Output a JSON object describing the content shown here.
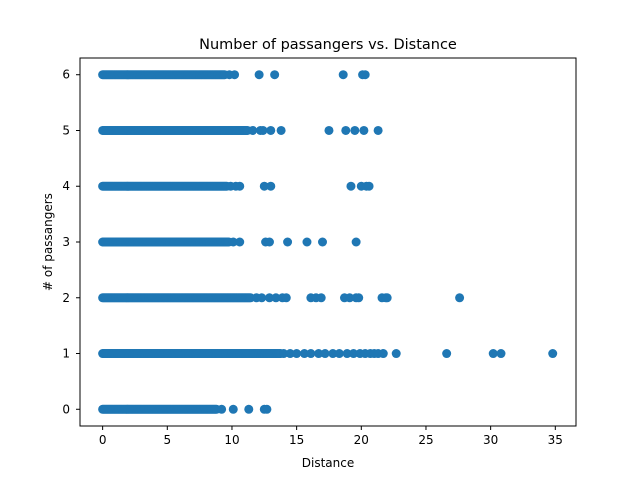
{
  "chart_data": {
    "type": "scatter",
    "title": "Number of passangers vs. Distance",
    "xlabel": "Distance",
    "ylabel": "# of passangers",
    "xlim": [
      -1.75,
      36.6
    ],
    "ylim": [
      -0.3,
      6.3
    ],
    "xticks": [
      0,
      5,
      10,
      15,
      20,
      25,
      30,
      35
    ],
    "yticks": [
      0,
      1,
      2,
      3,
      4,
      5,
      6
    ],
    "grid": false,
    "marker_color": "#1f77b4",
    "series": [
      {
        "dense_ranges": [
          {
            "y": 0,
            "from": 0,
            "to": 8.8
          },
          {
            "y": 1,
            "from": 0,
            "to": 13.8
          },
          {
            "y": 2,
            "from": 0,
            "to": 11.5
          },
          {
            "y": 3,
            "from": 0,
            "to": 9.8
          },
          {
            "y": 4,
            "from": 0,
            "to": 9.6
          },
          {
            "y": 5,
            "from": 0,
            "to": 11.2
          },
          {
            "y": 6,
            "from": 0,
            "to": 9.5
          }
        ],
        "points": [
          {
            "x": 9.2,
            "y": 0
          },
          {
            "x": 10.1,
            "y": 0
          },
          {
            "x": 11.3,
            "y": 0
          },
          {
            "x": 12.5,
            "y": 0
          },
          {
            "x": 12.7,
            "y": 0
          },
          {
            "x": 14.0,
            "y": 1
          },
          {
            "x": 14.5,
            "y": 1
          },
          {
            "x": 15.0,
            "y": 1
          },
          {
            "x": 15.6,
            "y": 1
          },
          {
            "x": 16.1,
            "y": 1
          },
          {
            "x": 16.7,
            "y": 1
          },
          {
            "x": 17.2,
            "y": 1
          },
          {
            "x": 17.8,
            "y": 1
          },
          {
            "x": 18.3,
            "y": 1
          },
          {
            "x": 18.9,
            "y": 1
          },
          {
            "x": 19.4,
            "y": 1
          },
          {
            "x": 19.9,
            "y": 1
          },
          {
            "x": 20.3,
            "y": 1
          },
          {
            "x": 20.7,
            "y": 1
          },
          {
            "x": 21.0,
            "y": 1
          },
          {
            "x": 21.3,
            "y": 1
          },
          {
            "x": 21.7,
            "y": 1
          },
          {
            "x": 22.7,
            "y": 1
          },
          {
            "x": 26.6,
            "y": 1
          },
          {
            "x": 30.2,
            "y": 1
          },
          {
            "x": 30.8,
            "y": 1
          },
          {
            "x": 34.8,
            "y": 1
          },
          {
            "x": 11.9,
            "y": 2
          },
          {
            "x": 12.3,
            "y": 2
          },
          {
            "x": 12.9,
            "y": 2
          },
          {
            "x": 13.4,
            "y": 2
          },
          {
            "x": 13.9,
            "y": 2
          },
          {
            "x": 14.2,
            "y": 2
          },
          {
            "x": 16.1,
            "y": 2
          },
          {
            "x": 16.5,
            "y": 2
          },
          {
            "x": 16.9,
            "y": 2
          },
          {
            "x": 18.7,
            "y": 2
          },
          {
            "x": 19.1,
            "y": 2
          },
          {
            "x": 19.6,
            "y": 2
          },
          {
            "x": 19.8,
            "y": 2
          },
          {
            "x": 21.6,
            "y": 2
          },
          {
            "x": 21.9,
            "y": 2
          },
          {
            "x": 22.0,
            "y": 2
          },
          {
            "x": 27.6,
            "y": 2
          },
          {
            "x": 10.1,
            "y": 3
          },
          {
            "x": 10.6,
            "y": 3
          },
          {
            "x": 12.6,
            "y": 3
          },
          {
            "x": 12.9,
            "y": 3
          },
          {
            "x": 14.3,
            "y": 3
          },
          {
            "x": 15.8,
            "y": 3
          },
          {
            "x": 17.0,
            "y": 3
          },
          {
            "x": 19.6,
            "y": 3
          },
          {
            "x": 9.9,
            "y": 4
          },
          {
            "x": 10.3,
            "y": 4
          },
          {
            "x": 10.6,
            "y": 4
          },
          {
            "x": 12.5,
            "y": 4
          },
          {
            "x": 13.0,
            "y": 4
          },
          {
            "x": 19.2,
            "y": 4
          },
          {
            "x": 20.0,
            "y": 4
          },
          {
            "x": 20.4,
            "y": 4
          },
          {
            "x": 20.6,
            "y": 4
          },
          {
            "x": 11.6,
            "y": 5
          },
          {
            "x": 12.2,
            "y": 5
          },
          {
            "x": 12.4,
            "y": 5
          },
          {
            "x": 13.0,
            "y": 5
          },
          {
            "x": 13.8,
            "y": 5
          },
          {
            "x": 17.5,
            "y": 5
          },
          {
            "x": 18.8,
            "y": 5
          },
          {
            "x": 19.5,
            "y": 5
          },
          {
            "x": 20.2,
            "y": 5
          },
          {
            "x": 21.3,
            "y": 5
          },
          {
            "x": 9.8,
            "y": 6
          },
          {
            "x": 10.2,
            "y": 6
          },
          {
            "x": 12.1,
            "y": 6
          },
          {
            "x": 13.3,
            "y": 6
          },
          {
            "x": 18.6,
            "y": 6
          },
          {
            "x": 20.1,
            "y": 6
          },
          {
            "x": 20.3,
            "y": 6
          }
        ]
      }
    ]
  }
}
